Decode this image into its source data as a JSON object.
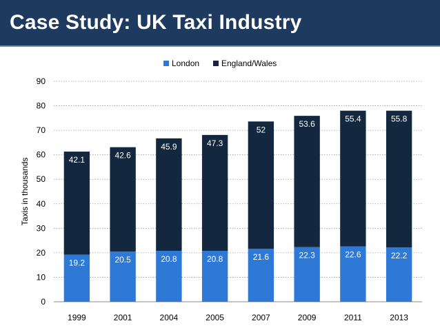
{
  "slide": {
    "title": "Case Study: UK Taxi Industry"
  },
  "colors": {
    "header": "#1f3a5f",
    "london": "#2e78d6",
    "england": "#13283f"
  },
  "chart_data": {
    "type": "bar",
    "stacked": true,
    "title": "",
    "xlabel": "",
    "ylabel": "Taxis in thousands",
    "ylim": [
      0,
      90
    ],
    "yticks": [
      0,
      10,
      20,
      30,
      40,
      50,
      60,
      70,
      80,
      90
    ],
    "grid": true,
    "legend_position": "top-center",
    "categories": [
      "1999",
      "2001",
      "2004",
      "2005",
      "2007",
      "2009",
      "2011",
      "2013"
    ],
    "series": [
      {
        "name": "London",
        "color": "#2e78d6",
        "values": [
          19.2,
          20.5,
          20.8,
          20.8,
          21.6,
          22.3,
          22.6,
          22.2
        ],
        "labels": [
          "19.2",
          "20.5",
          "20.8",
          "20.8",
          "21.6",
          "22.3",
          "22.6",
          "22.2"
        ]
      },
      {
        "name": "England/Wales",
        "color": "#13283f",
        "values": [
          42.1,
          42.6,
          45.9,
          47.3,
          52,
          53.6,
          55.4,
          55.8
        ],
        "labels": [
          "42.1",
          "42.6",
          "45.9",
          "47.3",
          "52",
          "53.6",
          "55.4",
          "55.8"
        ]
      }
    ]
  }
}
